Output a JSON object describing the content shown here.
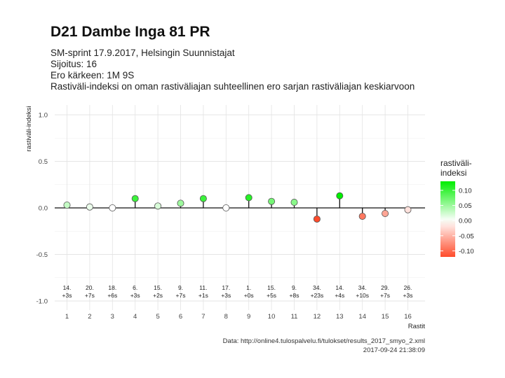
{
  "title": "D21 Dambe Inga 81 PR",
  "subtitle_lines": [
    "SM-sprint 17.9.2017, Helsingin Suunnistajat",
    "Sijoitus: 16",
    "Ero kärkeen: 1M 9S",
    "Rastiväli-indeksi on oman rastiväliajan suhteellinen ero sarjan rastiväliajan keskiarvoon"
  ],
  "caption": {
    "line1": "Data: http://online4.tulospalvelu.fi/tulokset/results_2017_smyo_2.xml",
    "line2": "2017-09-24 21:38:09"
  },
  "legend": {
    "title_line1": "rastiväli-",
    "title_line2": "indeksi",
    "ticks": [
      "0.10",
      "0.05",
      "0.00",
      "-0.05",
      "-0.10"
    ],
    "tick_values": [
      0.1,
      0.05,
      0.0,
      -0.05,
      -0.1
    ],
    "range": [
      -0.12,
      0.13
    ],
    "color_low": "#ff4b2b",
    "color_mid": "#ffffff",
    "color_high": "#00ee00"
  },
  "chart_data": {
    "type": "scatter",
    "xlabel": "Rastit",
    "ylabel": "rastiväli-indeksi",
    "ylim": [
      -1.0,
      1.0
    ],
    "yticks": [
      "1.0",
      "0.5",
      "0.0",
      "-0.5",
      "-1.0"
    ],
    "ytick_values": [
      1.0,
      0.5,
      0.0,
      -0.5,
      -1.0
    ],
    "x": [
      1,
      2,
      3,
      4,
      5,
      6,
      7,
      8,
      9,
      10,
      11,
      12,
      13,
      14,
      15,
      16
    ],
    "values": [
      0.03,
      0.01,
      0.0,
      0.1,
      0.02,
      0.05,
      0.1,
      0.0,
      0.11,
      0.07,
      0.06,
      -0.12,
      0.13,
      -0.09,
      -0.06,
      -0.02
    ],
    "rank_labels": [
      "14.",
      "20.",
      "18.",
      "6.",
      "15.",
      "9.",
      "11.",
      "17.",
      "1.",
      "15.",
      "9.",
      "34.",
      "14.",
      "34.",
      "29.",
      "26."
    ],
    "diff_labels": [
      "+3s",
      "+7s",
      "+6s",
      "+3s",
      "+2s",
      "+7s",
      "+1s",
      "+3s",
      "+0s",
      "+5s",
      "+8s",
      "+23s",
      "+4s",
      "+10s",
      "+7s",
      "+3s"
    ],
    "grid": true,
    "legend_placement": "right"
  }
}
